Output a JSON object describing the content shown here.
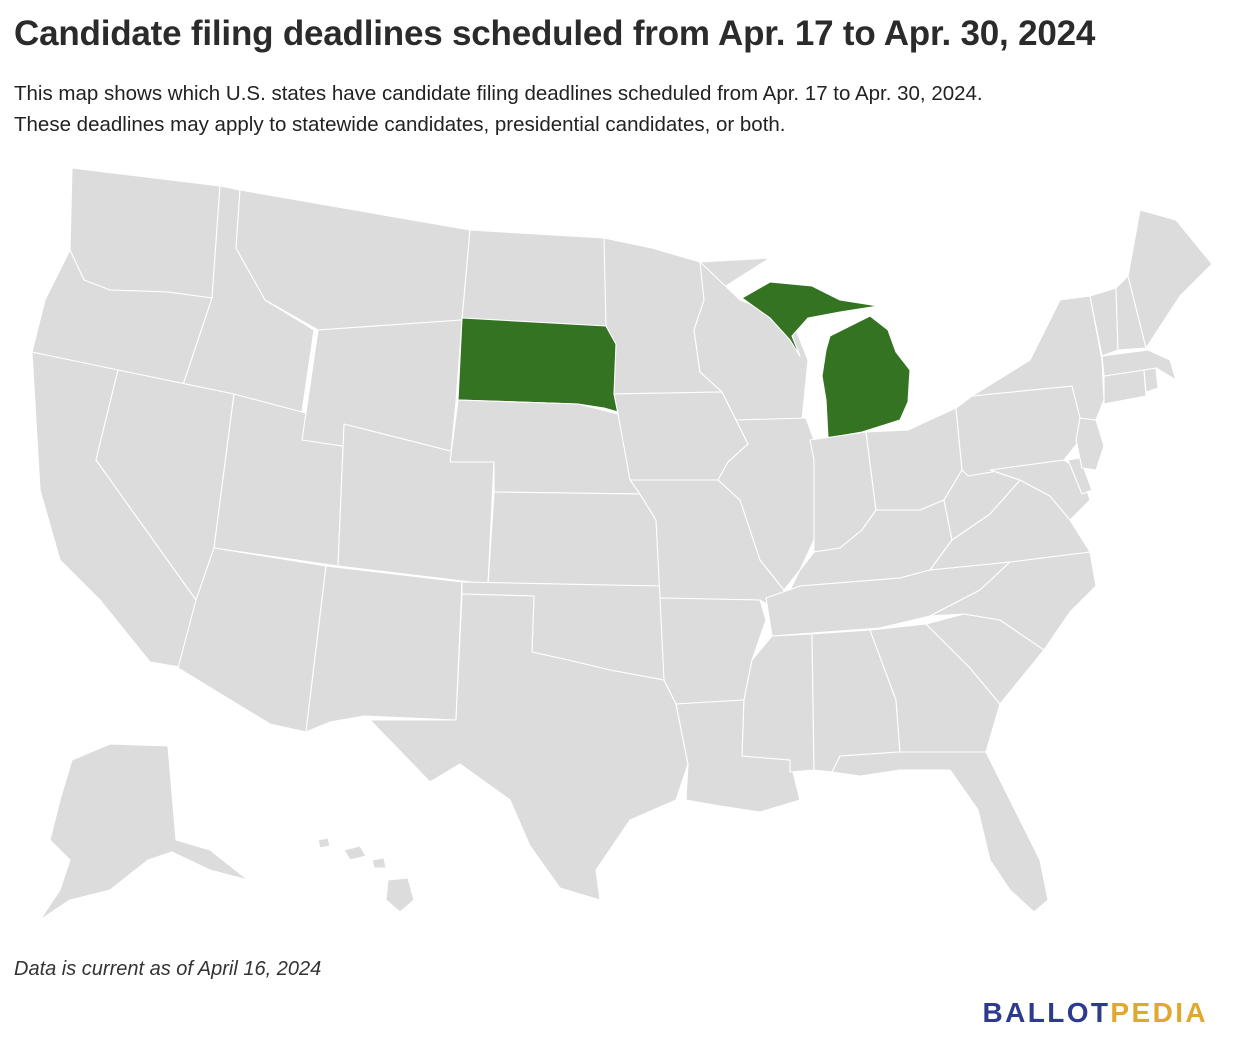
{
  "header": {
    "title": "Candidate filing deadlines scheduled from Apr. 17 to Apr. 30, 2024",
    "subtitle_line1": "This map shows which U.S. states have candidate filing deadlines scheduled from Apr. 17 to Apr. 30, 2024.",
    "subtitle_line2": "These deadlines may apply to statewide candidates, presidential candidates, or both."
  },
  "map": {
    "highlighted_states": [
      "South Dakota",
      "Michigan"
    ],
    "colors": {
      "highlight": "#337321",
      "default_fill": "#dcdcdc",
      "border": "#ffffff"
    }
  },
  "footer": {
    "note": "Data is current as of April 16, 2024",
    "logo_part1": "BALLOT",
    "logo_part2": "PEDIA",
    "logo_color1": "#2c3b8e",
    "logo_color2": "#e0a82e"
  }
}
